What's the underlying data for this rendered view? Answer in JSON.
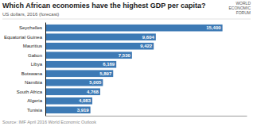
{
  "chart_data": {
    "type": "bar",
    "orientation": "horizontal",
    "title": "Which African economies have the highest GDP per capita?",
    "subtitle": "US dollars, 2016 (forecast)",
    "source": "Source: IMF April 2016 World Economic Outlook",
    "annotations": [
      "WORLD",
      "ECONOMIC",
      "FORUM"
    ],
    "categories": [
      "Tunisia",
      "Algeria",
      "South Africa",
      "Namibia",
      "Botswana",
      "Libya",
      "Gabon",
      "Mauritius",
      "Equatorial Guinea",
      "Seychelles"
    ],
    "values": [
      3919,
      4083,
      4768,
      5005,
      5897,
      6169,
      7530,
      9422,
      9604,
      15400
    ],
    "value_labels": [
      "3,919",
      "4,083",
      "4,768",
      "5,005",
      "5,897",
      "6,169",
      "7,530",
      "9,422",
      "9,604",
      "15,400"
    ],
    "color": "#3d7ab5",
    "xlim": [
      0,
      17500
    ],
    "data_labels": true,
    "tick_labels": "y",
    "grid": false
  }
}
